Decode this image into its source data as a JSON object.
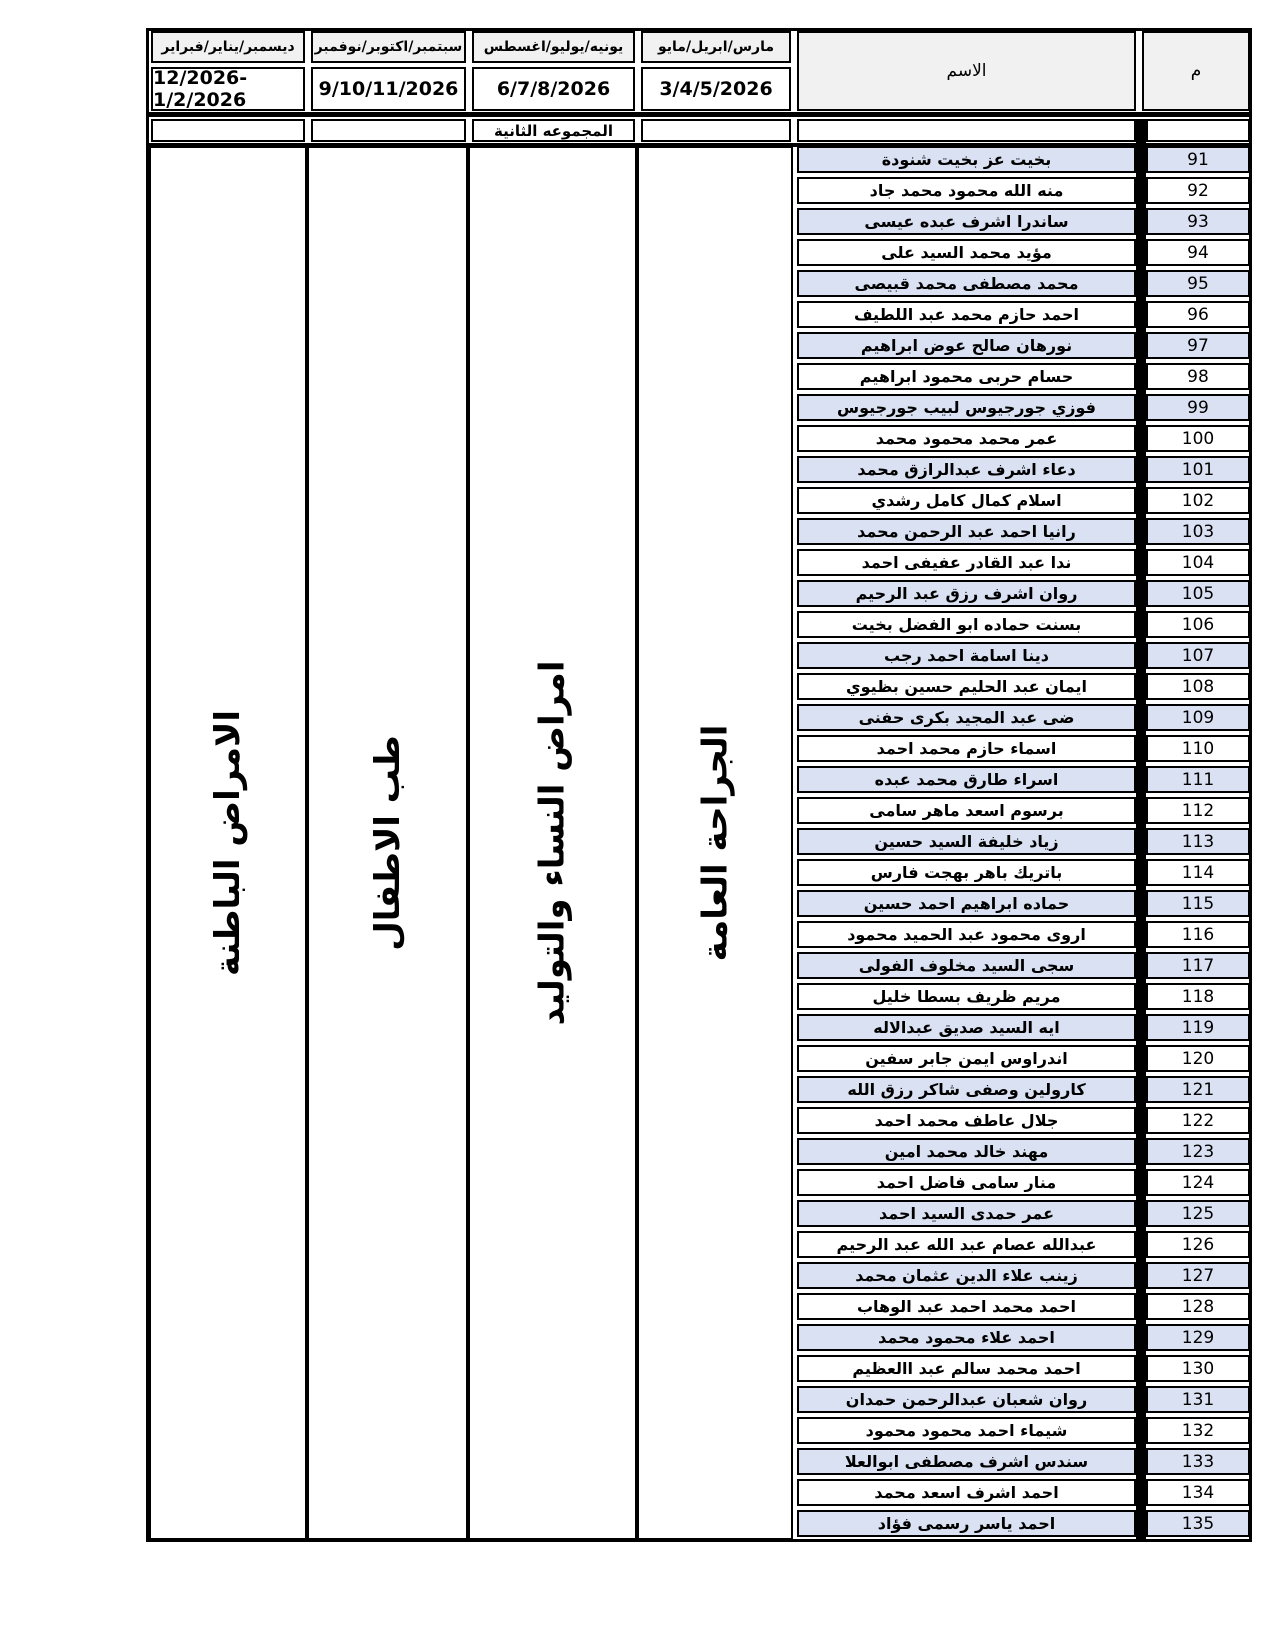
{
  "header": {
    "serial_label": "م",
    "name_label": "الاسم",
    "periods": [
      {
        "months": "مارس/ابريل/مايو",
        "dates": "3/4/5/2026",
        "specialty": "الجراحة العامة"
      },
      {
        "months": "يونيه/يوليو/اغسطس",
        "dates": "6/7/8/2026",
        "specialty": "امراض النساء والتوليد"
      },
      {
        "months": "سبتمبر/اكتوبر/نوفمبر",
        "dates": "9/10/11/2026",
        "specialty": "طب الاطفال"
      },
      {
        "months": "ديسمبر/يناير/فبراير",
        "dates": "12/2026-1/2/2026",
        "specialty": "الامراض الباطنة"
      }
    ]
  },
  "group_label": "المجموعه الثانية",
  "colors": {
    "row_shade": "#d9e1f2",
    "header_bg": "#f1f1f1",
    "border": "#000000"
  },
  "students": [
    {
      "no": 91,
      "name": "بخيت عز بخيت شنودة"
    },
    {
      "no": 92,
      "name": "منه الله محمود محمد جاد"
    },
    {
      "no": 93,
      "name": "ساندرا اشرف عبده عيسى"
    },
    {
      "no": 94,
      "name": "مؤيد محمد السيد على"
    },
    {
      "no": 95,
      "name": "محمد مصطفى محمد قبيصى"
    },
    {
      "no": 96,
      "name": "احمد حازم محمد عبد اللطيف"
    },
    {
      "no": 97,
      "name": "نورهان صالح عوض ابراهيم"
    },
    {
      "no": 98,
      "name": "حسام حربى محمود ابراهيم"
    },
    {
      "no": 99,
      "name": "فوزي جورجيوس لبيب جورجيوس"
    },
    {
      "no": 100,
      "name": "عمر محمد محمود محمد"
    },
    {
      "no": 101,
      "name": "دعاء اشرف عبدالرازق محمد"
    },
    {
      "no": 102,
      "name": "اسلام كمال كامل رشدي"
    },
    {
      "no": 103,
      "name": "رانيا احمد  عبد الرحمن محمد"
    },
    {
      "no": 104,
      "name": "ندا  عبد القادر عفيفى احمد"
    },
    {
      "no": 105,
      "name": "روان اشرف رزق عبد الرحيم"
    },
    {
      "no": 106,
      "name": "بسنت حماده ابو الفضل بخيت"
    },
    {
      "no": 107,
      "name": "دينا اسامة احمد رجب"
    },
    {
      "no": 108,
      "name": "ايمان عبد الحليم حسين بظيوي"
    },
    {
      "no": 109,
      "name": "ضى عبد المجيد بكرى حفنى"
    },
    {
      "no": 110,
      "name": "اسماء حازم محمد احمد"
    },
    {
      "no": 111,
      "name": "اسراء طارق محمد عبده"
    },
    {
      "no": 112,
      "name": "برسوم اسعد ماهر سامى"
    },
    {
      "no": 113,
      "name": "زياد خليفة السيد حسين"
    },
    {
      "no": 114,
      "name": "باتريك باهر بهجت فارس"
    },
    {
      "no": 115,
      "name": "حماده ابراهيم احمد حسين"
    },
    {
      "no": 116,
      "name": "اروى محمود عبد الحميد محمود"
    },
    {
      "no": 117,
      "name": "سجى السيد مخلوف الفولى"
    },
    {
      "no": 118,
      "name": "مريم ظريف بسطا خليل"
    },
    {
      "no": 119,
      "name": "ايه السيد صديق عبدالاله"
    },
    {
      "no": 120,
      "name": "اندراوس ايمن جابر سفين"
    },
    {
      "no": 121,
      "name": "كارولين وصفى شاكر رزق الله"
    },
    {
      "no": 122,
      "name": "جلال عاطف محمد احمد"
    },
    {
      "no": 123,
      "name": "مهند خالد محمد امين"
    },
    {
      "no": 124,
      "name": "منار سامى فاضل احمد"
    },
    {
      "no": 125,
      "name": "عمر حمدى السيد احمد"
    },
    {
      "no": 126,
      "name": "عبدالله عصام عبد الله عبد الرحيم"
    },
    {
      "no": 127,
      "name": "زينب علاء الدين عثمان محمد"
    },
    {
      "no": 128,
      "name": "احمد محمد احمد عبد الوهاب"
    },
    {
      "no": 129,
      "name": "احمد علاء محمود محمد"
    },
    {
      "no": 130,
      "name": "احمد محمد سالم عبد االعظيم"
    },
    {
      "no": 131,
      "name": "روان شعبان عبدالرحمن حمدان"
    },
    {
      "no": 132,
      "name": "شيماء احمد محمود محمود"
    },
    {
      "no": 133,
      "name": "سندس اشرف مصطفى ابوالعلا"
    },
    {
      "no": 134,
      "name": "احمد اشرف اسعد محمد"
    },
    {
      "no": 135,
      "name": "احمد ياسر رسمى فؤاد"
    }
  ]
}
